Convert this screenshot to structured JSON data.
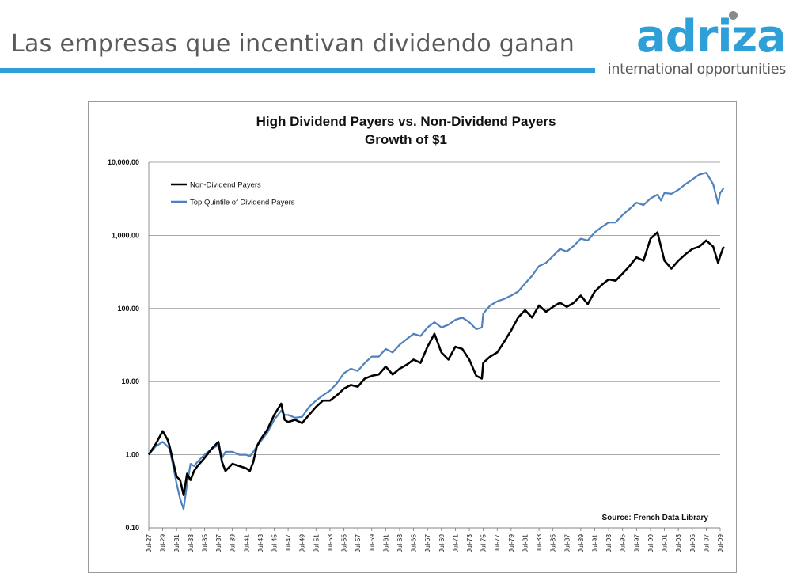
{
  "header": {
    "title": "Las empresas que incentivan dividendo ganan",
    "brand_name": "adriza",
    "brand_tagline": "international opportunities",
    "accent_color": "#2f9fd8"
  },
  "chart_data": {
    "type": "line",
    "title": "High Dividend Payers vs. Non-Dividend Payers",
    "subtitle": "Growth of $1",
    "xlabel": "",
    "ylabel": "",
    "y_scale": "log",
    "ylim": [
      0.1,
      10000
    ],
    "y_ticks": [
      "10,000.00",
      "1,000.00",
      "100.00",
      "10.00",
      "1.00",
      "0.10"
    ],
    "y_tick_values": [
      10000,
      1000,
      100,
      10,
      1,
      0.1
    ],
    "x_ticks": [
      "Jul-27",
      "Jul-29",
      "Jul-31",
      "Jul-33",
      "Jul-35",
      "Jul-37",
      "Jul-39",
      "Jul-41",
      "Jul-43",
      "Jul-45",
      "Jul-47",
      "Jul-49",
      "Jul-51",
      "Jul-53",
      "Jul-55",
      "Jul-57",
      "Jul-59",
      "Jul-61",
      "Jul-63",
      "Jul-65",
      "Jul-67",
      "Jul-69",
      "Jul-71",
      "Jul-73",
      "Jul-75",
      "Jul-77",
      "Jul-79",
      "Jul-81",
      "Jul-83",
      "Jul-85",
      "Jul-87",
      "Jul-89",
      "Jul-91",
      "Jul-93",
      "Jul-95",
      "Jul-97",
      "Jul-99",
      "Jul-01",
      "Jul-03",
      "Jul-05",
      "Jul-07",
      "Jul-09"
    ],
    "x_tick_years": [
      1927,
      1929,
      1931,
      1933,
      1935,
      1937,
      1939,
      1941,
      1943,
      1945,
      1947,
      1949,
      1951,
      1953,
      1955,
      1957,
      1959,
      1961,
      1963,
      1965,
      1967,
      1969,
      1971,
      1973,
      1975,
      1977,
      1979,
      1981,
      1983,
      1985,
      1987,
      1989,
      1991,
      1993,
      1995,
      1997,
      1999,
      2001,
      2003,
      2005,
      2007,
      2009
    ],
    "grid": true,
    "legend_position": "top-left",
    "source": "Source: French Data Library",
    "series": [
      {
        "name": "Non-Dividend Payers",
        "color": "#000000",
        "x": [
          1927,
          1928,
          1929,
          1929.7,
          1930,
          1930.5,
          1931,
          1931.5,
          1932,
          1932.5,
          1933,
          1933.5,
          1934,
          1935,
          1936,
          1937,
          1937.5,
          1938,
          1939,
          1940,
          1941,
          1941.5,
          1942,
          1942.5,
          1943,
          1944,
          1945,
          1946,
          1946.5,
          1947,
          1948,
          1949,
          1950,
          1951,
          1952,
          1953,
          1954,
          1955,
          1956,
          1957,
          1958,
          1959,
          1960,
          1961,
          1962,
          1963,
          1964,
          1965,
          1966,
          1967,
          1968,
          1969,
          1970,
          1971,
          1972,
          1973,
          1974,
          1974.8,
          1975,
          1976,
          1977,
          1978,
          1979,
          1980,
          1981,
          1982,
          1983,
          1984,
          1985,
          1986,
          1987,
          1988,
          1989,
          1990,
          1991,
          1992,
          1993,
          1994,
          1995,
          1996,
          1997,
          1998,
          1999,
          2000,
          2000.5,
          2001,
          2002,
          2003,
          2004,
          2005,
          2006,
          2007,
          2008,
          2008.7,
          2009,
          2009.5
        ],
        "y": [
          1.0,
          1.4,
          2.1,
          1.6,
          1.3,
          0.8,
          0.5,
          0.45,
          0.28,
          0.55,
          0.45,
          0.6,
          0.7,
          0.9,
          1.2,
          1.5,
          0.8,
          0.6,
          0.75,
          0.7,
          0.65,
          0.6,
          0.8,
          1.3,
          1.6,
          2.2,
          3.5,
          5.0,
          3.0,
          2.8,
          3.0,
          2.7,
          3.5,
          4.5,
          5.5,
          5.5,
          6.5,
          8.0,
          9.0,
          8.5,
          11.0,
          12.0,
          12.5,
          16.0,
          12.5,
          15.0,
          17.0,
          20.0,
          18.0,
          30.0,
          45.0,
          25.0,
          20.0,
          30.0,
          28.0,
          20.0,
          12.0,
          11.0,
          18.0,
          22.0,
          25.0,
          35.0,
          50.0,
          75.0,
          95.0,
          75.0,
          110.0,
          90.0,
          105.0,
          120.0,
          105.0,
          120.0,
          150.0,
          115.0,
          170.0,
          210.0,
          250.0,
          240.0,
          300.0,
          380.0,
          500.0,
          450.0,
          900.0,
          1100.0,
          700.0,
          450.0,
          350.0,
          450.0,
          550.0,
          650.0,
          700.0,
          850.0,
          700.0,
          420.0,
          520.0,
          700.0
        ]
      },
      {
        "name": "Top Quintile of Dividend Payers",
        "color": "#4f81bd",
        "x": [
          1927,
          1928,
          1929,
          1929.7,
          1930,
          1930.5,
          1931,
          1931.5,
          1932,
          1932.5,
          1933,
          1933.5,
          1934,
          1935,
          1936,
          1937,
          1937.5,
          1938,
          1939,
          1940,
          1941,
          1941.5,
          1942,
          1942.5,
          1943,
          1944,
          1945,
          1946,
          1946.5,
          1947,
          1948,
          1949,
          1950,
          1951,
          1952,
          1953,
          1954,
          1955,
          1956,
          1957,
          1958,
          1959,
          1960,
          1961,
          1962,
          1963,
          1964,
          1965,
          1966,
          1967,
          1968,
          1969,
          1970,
          1971,
          1972,
          1973,
          1974,
          1974.8,
          1975,
          1976,
          1977,
          1978,
          1979,
          1980,
          1981,
          1982,
          1983,
          1984,
          1985,
          1986,
          1987,
          1988,
          1989,
          1990,
          1991,
          1992,
          1993,
          1994,
          1995,
          1996,
          1997,
          1998,
          1999,
          2000,
          2000.5,
          2001,
          2002,
          2003,
          2004,
          2005,
          2006,
          2007,
          2008,
          2008.7,
          2009,
          2009.5
        ],
        "y": [
          1.0,
          1.3,
          1.5,
          1.3,
          1.2,
          0.7,
          0.4,
          0.25,
          0.18,
          0.4,
          0.75,
          0.7,
          0.8,
          1.0,
          1.2,
          1.35,
          0.9,
          1.1,
          1.1,
          1.0,
          1.0,
          0.95,
          1.1,
          1.3,
          1.5,
          2.0,
          3.0,
          4.0,
          3.5,
          3.5,
          3.2,
          3.3,
          4.5,
          5.5,
          6.5,
          7.5,
          9.5,
          13.0,
          15.0,
          14.0,
          18.0,
          22.0,
          22.0,
          28.0,
          25.0,
          32.0,
          38.0,
          45.0,
          42.0,
          55.0,
          65.0,
          55.0,
          60.0,
          70.0,
          75.0,
          65.0,
          52.0,
          55.0,
          85.0,
          110.0,
          125.0,
          135.0,
          150.0,
          170.0,
          220.0,
          280.0,
          380.0,
          420.0,
          520.0,
          650.0,
          600.0,
          720.0,
          900.0,
          850.0,
          1100.0,
          1300.0,
          1500.0,
          1500.0,
          1900.0,
          2300.0,
          2800.0,
          2600.0,
          3200.0,
          3600.0,
          3000.0,
          3800.0,
          3700.0,
          4200.0,
          5000.0,
          5800.0,
          6800.0,
          7200.0,
          5000.0,
          2700.0,
          3800.0,
          4400.0
        ]
      }
    ]
  }
}
